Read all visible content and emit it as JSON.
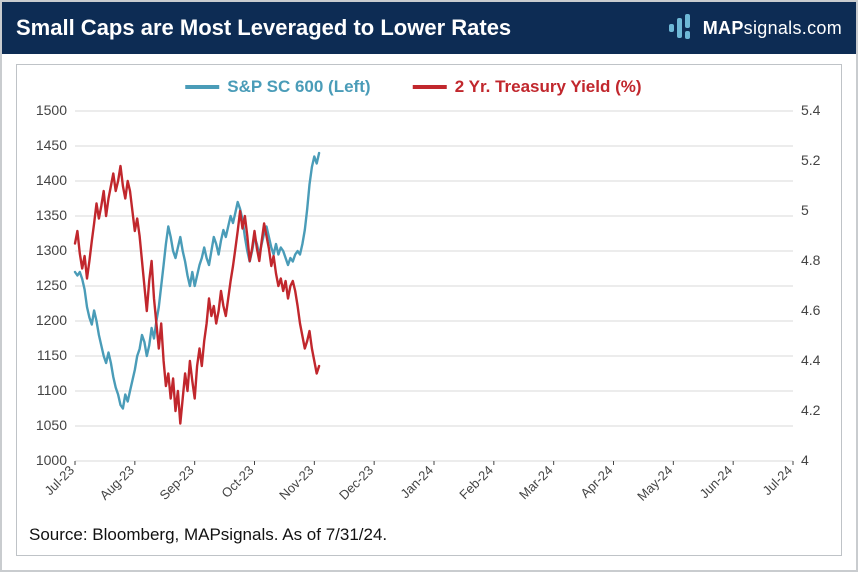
{
  "header": {
    "title": "Small Caps are Most Leveraged to Lower Rates",
    "brand_strong": "MAP",
    "brand_rest": "signals.com",
    "bg_color": "#0d2c54",
    "text_color": "#ffffff",
    "icon_color": "#6eb8d6"
  },
  "footer": {
    "source": "Source: Bloomberg, MAPsignals. As of 7/31/24."
  },
  "chart": {
    "type": "dual-axis-line",
    "background_color": "#ffffff",
    "border_color": "#bfc3c7",
    "grid_color": "#d9d9d9",
    "axis_text_color": "#444444",
    "legend": {
      "series1": {
        "label": "S&P SC 600 (Left)",
        "color": "#4a9cb8",
        "width": 2.4
      },
      "series2": {
        "label": "2 Yr. Treasury Yield (%)",
        "color": "#c1272d",
        "width": 2.4
      }
    },
    "x": {
      "labels": [
        "Jul-23",
        "Aug-23",
        "Sep-23",
        "Oct-23",
        "Nov-23",
        "Dec-23",
        "Jan-24",
        "Feb-24",
        "Mar-24",
        "Apr-24",
        "May-24",
        "Jun-24",
        "Jul-24"
      ],
      "label_rotation": -45
    },
    "y_left": {
      "min": 1000,
      "max": 1500,
      "step": 50,
      "ticks": [
        1000,
        1050,
        1100,
        1150,
        1200,
        1250,
        1300,
        1350,
        1400,
        1450,
        1500
      ]
    },
    "y_right": {
      "min": 4.0,
      "max": 5.4,
      "step": 0.2,
      "ticks": [
        4,
        4.2,
        4.4,
        4.6,
        4.8,
        5,
        5.2,
        5.4
      ]
    },
    "series1_data": [
      [
        0.0,
        1270
      ],
      [
        0.04,
        1265
      ],
      [
        0.08,
        1270
      ],
      [
        0.12,
        1260
      ],
      [
        0.16,
        1245
      ],
      [
        0.2,
        1220
      ],
      [
        0.24,
        1205
      ],
      [
        0.28,
        1195
      ],
      [
        0.32,
        1215
      ],
      [
        0.36,
        1200
      ],
      [
        0.4,
        1180
      ],
      [
        0.44,
        1165
      ],
      [
        0.48,
        1150
      ],
      [
        0.52,
        1140
      ],
      [
        0.56,
        1155
      ],
      [
        0.6,
        1140
      ],
      [
        0.64,
        1120
      ],
      [
        0.68,
        1105
      ],
      [
        0.72,
        1095
      ],
      [
        0.76,
        1080
      ],
      [
        0.8,
        1075
      ],
      [
        0.84,
        1095
      ],
      [
        0.88,
        1085
      ],
      [
        0.92,
        1100
      ],
      [
        0.96,
        1115
      ],
      [
        1.0,
        1130
      ],
      [
        1.04,
        1150
      ],
      [
        1.08,
        1160
      ],
      [
        1.12,
        1180
      ],
      [
        1.16,
        1170
      ],
      [
        1.2,
        1150
      ],
      [
        1.24,
        1165
      ],
      [
        1.28,
        1190
      ],
      [
        1.32,
        1175
      ],
      [
        1.36,
        1200
      ],
      [
        1.4,
        1220
      ],
      [
        1.44,
        1250
      ],
      [
        1.48,
        1280
      ],
      [
        1.52,
        1310
      ],
      [
        1.56,
        1335
      ],
      [
        1.6,
        1320
      ],
      [
        1.64,
        1300
      ],
      [
        1.68,
        1290
      ],
      [
        1.72,
        1305
      ],
      [
        1.76,
        1320
      ],
      [
        1.8,
        1300
      ],
      [
        1.84,
        1285
      ],
      [
        1.88,
        1265
      ],
      [
        1.92,
        1250
      ],
      [
        1.96,
        1270
      ],
      [
        2.0,
        1250
      ],
      [
        2.04,
        1265
      ],
      [
        2.08,
        1280
      ],
      [
        2.12,
        1290
      ],
      [
        2.16,
        1305
      ],
      [
        2.2,
        1290
      ],
      [
        2.24,
        1280
      ],
      [
        2.28,
        1300
      ],
      [
        2.32,
        1320
      ],
      [
        2.36,
        1310
      ],
      [
        2.4,
        1295
      ],
      [
        2.44,
        1315
      ],
      [
        2.48,
        1330
      ],
      [
        2.52,
        1320
      ],
      [
        2.56,
        1335
      ],
      [
        2.6,
        1350
      ],
      [
        2.64,
        1340
      ],
      [
        2.68,
        1355
      ],
      [
        2.72,
        1370
      ],
      [
        2.76,
        1360
      ],
      [
        2.8,
        1345
      ],
      [
        2.84,
        1320
      ],
      [
        2.88,
        1300
      ],
      [
        2.92,
        1285
      ],
      [
        2.96,
        1300
      ],
      [
        3.0,
        1320
      ],
      [
        3.04,
        1310
      ],
      [
        3.08,
        1295
      ],
      [
        3.12,
        1310
      ],
      [
        3.16,
        1325
      ],
      [
        3.2,
        1335
      ],
      [
        3.24,
        1320
      ],
      [
        3.28,
        1305
      ],
      [
        3.32,
        1295
      ],
      [
        3.36,
        1310
      ],
      [
        3.4,
        1295
      ],
      [
        3.44,
        1305
      ],
      [
        3.48,
        1300
      ],
      [
        3.52,
        1290
      ],
      [
        3.56,
        1280
      ],
      [
        3.6,
        1290
      ],
      [
        3.64,
        1285
      ],
      [
        3.68,
        1295
      ],
      [
        3.72,
        1300
      ],
      [
        3.76,
        1295
      ],
      [
        3.8,
        1310
      ],
      [
        3.84,
        1330
      ],
      [
        3.88,
        1360
      ],
      [
        3.92,
        1395
      ],
      [
        3.96,
        1420
      ],
      [
        4.0,
        1435
      ],
      [
        4.04,
        1425
      ],
      [
        4.08,
        1440
      ]
    ],
    "series2_data": [
      [
        0.0,
        4.87
      ],
      [
        0.04,
        4.92
      ],
      [
        0.08,
        4.83
      ],
      [
        0.12,
        4.77
      ],
      [
        0.16,
        4.82
      ],
      [
        0.2,
        4.73
      ],
      [
        0.24,
        4.8
      ],
      [
        0.28,
        4.88
      ],
      [
        0.32,
        4.95
      ],
      [
        0.36,
        5.03
      ],
      [
        0.4,
        4.97
      ],
      [
        0.44,
        5.02
      ],
      [
        0.48,
        5.08
      ],
      [
        0.52,
        4.98
      ],
      [
        0.56,
        5.05
      ],
      [
        0.6,
        5.1
      ],
      [
        0.64,
        5.15
      ],
      [
        0.68,
        5.08
      ],
      [
        0.72,
        5.12
      ],
      [
        0.76,
        5.18
      ],
      [
        0.8,
        5.1
      ],
      [
        0.84,
        5.05
      ],
      [
        0.88,
        5.12
      ],
      [
        0.92,
        5.08
      ],
      [
        0.96,
        5.0
      ],
      [
        1.0,
        4.92
      ],
      [
        1.04,
        4.97
      ],
      [
        1.08,
        4.9
      ],
      [
        1.12,
        4.8
      ],
      [
        1.16,
        4.7
      ],
      [
        1.2,
        4.6
      ],
      [
        1.24,
        4.72
      ],
      [
        1.28,
        4.8
      ],
      [
        1.32,
        4.65
      ],
      [
        1.36,
        4.55
      ],
      [
        1.4,
        4.45
      ],
      [
        1.44,
        4.55
      ],
      [
        1.48,
        4.4
      ],
      [
        1.52,
        4.3
      ],
      [
        1.56,
        4.35
      ],
      [
        1.6,
        4.25
      ],
      [
        1.64,
        4.33
      ],
      [
        1.68,
        4.2
      ],
      [
        1.72,
        4.28
      ],
      [
        1.76,
        4.15
      ],
      [
        1.8,
        4.25
      ],
      [
        1.84,
        4.35
      ],
      [
        1.88,
        4.28
      ],
      [
        1.92,
        4.4
      ],
      [
        1.96,
        4.32
      ],
      [
        2.0,
        4.25
      ],
      [
        2.04,
        4.38
      ],
      [
        2.08,
        4.45
      ],
      [
        2.12,
        4.38
      ],
      [
        2.16,
        4.48
      ],
      [
        2.2,
        4.55
      ],
      [
        2.24,
        4.65
      ],
      [
        2.28,
        4.58
      ],
      [
        2.32,
        4.62
      ],
      [
        2.36,
        4.55
      ],
      [
        2.4,
        4.6
      ],
      [
        2.44,
        4.68
      ],
      [
        2.48,
        4.62
      ],
      [
        2.52,
        4.58
      ],
      [
        2.56,
        4.65
      ],
      [
        2.6,
        4.72
      ],
      [
        2.64,
        4.78
      ],
      [
        2.68,
        4.85
      ],
      [
        2.72,
        4.92
      ],
      [
        2.76,
        5.0
      ],
      [
        2.8,
        4.93
      ],
      [
        2.84,
        4.98
      ],
      [
        2.88,
        4.9
      ],
      [
        2.92,
        4.8
      ],
      [
        2.96,
        4.85
      ],
      [
        3.0,
        4.92
      ],
      [
        3.04,
        4.85
      ],
      [
        3.08,
        4.8
      ],
      [
        3.12,
        4.88
      ],
      [
        3.16,
        4.95
      ],
      [
        3.2,
        4.9
      ],
      [
        3.24,
        4.85
      ],
      [
        3.28,
        4.78
      ],
      [
        3.32,
        4.82
      ],
      [
        3.36,
        4.75
      ],
      [
        3.4,
        4.7
      ],
      [
        3.44,
        4.73
      ],
      [
        3.48,
        4.68
      ],
      [
        3.52,
        4.72
      ],
      [
        3.56,
        4.65
      ],
      [
        3.6,
        4.7
      ],
      [
        3.64,
        4.72
      ],
      [
        3.68,
        4.68
      ],
      [
        3.72,
        4.62
      ],
      [
        3.76,
        4.55
      ],
      [
        3.8,
        4.5
      ],
      [
        3.84,
        4.45
      ],
      [
        3.88,
        4.48
      ],
      [
        3.92,
        4.52
      ],
      [
        3.96,
        4.45
      ],
      [
        4.0,
        4.4
      ],
      [
        4.04,
        4.35
      ],
      [
        4.08,
        4.38
      ]
    ]
  }
}
